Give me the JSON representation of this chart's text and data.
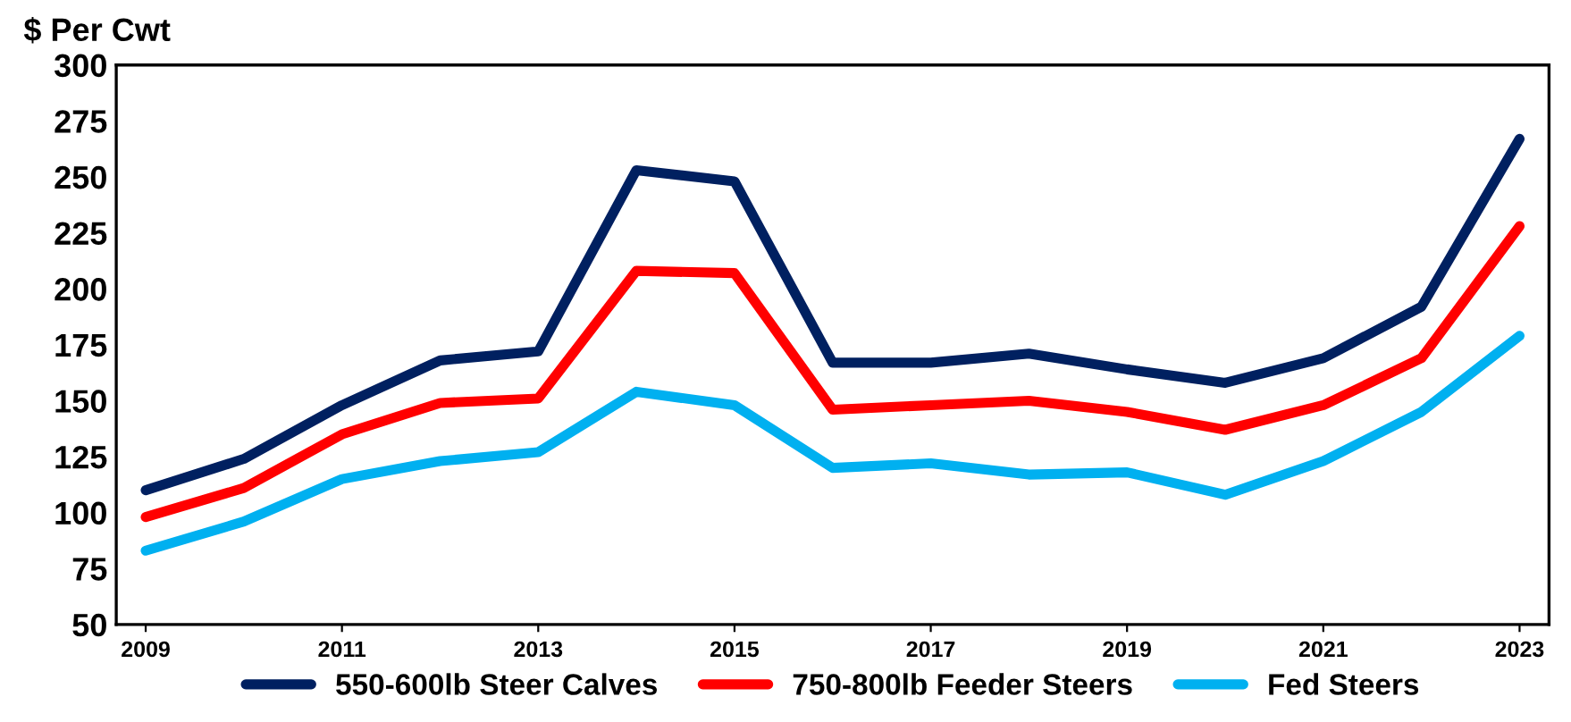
{
  "chart_data": {
    "type": "line",
    "ylabel": "$ Per Cwt",
    "x": [
      2009,
      2010,
      2011,
      2012,
      2013,
      2014,
      2015,
      2016,
      2017,
      2018,
      2019,
      2020,
      2021,
      2022,
      2023
    ],
    "series": [
      {
        "name": "550-600lb Steer Calves",
        "color": "#002060",
        "values": [
          110,
          124,
          148,
          168,
          172,
          253,
          248,
          167,
          167,
          171,
          164,
          158,
          169,
          192,
          267
        ]
      },
      {
        "name": "750-800lb Feeder Steers",
        "color": "#ff0000",
        "values": [
          98,
          111,
          135,
          149,
          151,
          208,
          207,
          146,
          148,
          150,
          145,
          137,
          148,
          169,
          228
        ]
      },
      {
        "name": "Fed Steers",
        "color": "#00b0f0",
        "values": [
          83,
          96,
          115,
          123,
          127,
          154,
          148,
          120,
          122,
          117,
          118,
          108,
          123,
          145,
          179
        ]
      }
    ],
    "xlim": [
      2008.7,
      2023.3
    ],
    "xticks": [
      2009,
      2011,
      2013,
      2015,
      2017,
      2019,
      2021,
      2023
    ],
    "ylim": [
      50,
      300
    ],
    "yticks": [
      50,
      75,
      100,
      125,
      150,
      175,
      200,
      225,
      250,
      275,
      300
    ],
    "grid": false,
    "legend": "bottom",
    "marker": "none",
    "line_style": "solid"
  }
}
